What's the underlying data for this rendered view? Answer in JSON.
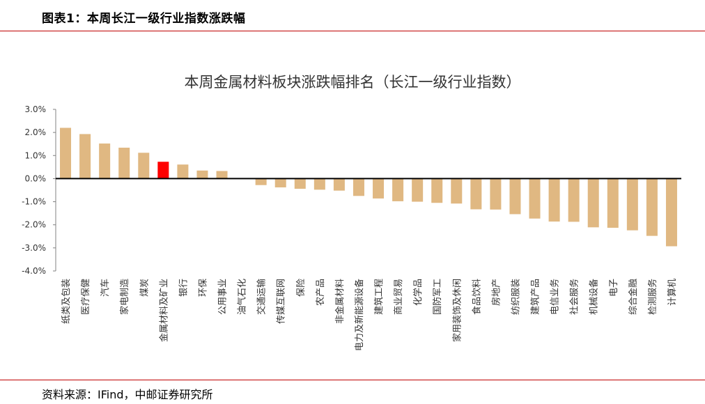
{
  "header": {
    "title": "图表1：本周长江一级行业指数涨跌幅"
  },
  "footer": {
    "source": "资料来源：IFind，中邮证券研究所"
  },
  "chart_data": {
    "type": "bar",
    "title": "本周金属材料板块涨跌幅排名（长江一级行业指数）",
    "xlabel": "",
    "ylabel": "",
    "ylim": [
      -4.0,
      3.0
    ],
    "yticks": [
      "3.0%",
      "2.0%",
      "1.0%",
      "0.0%",
      "-1.0%",
      "-2.0%",
      "-3.0%",
      "-4.0%"
    ],
    "grid": false,
    "legend": "none",
    "bar_color": "#e0b882",
    "highlight_color": "#ff0000",
    "highlight_category": "金属材料及矿业",
    "categories": [
      "纸类及包装",
      "医疗保健",
      "汽车",
      "家电制造",
      "煤炭",
      "金属材料及矿业",
      "银行",
      "环保",
      "公用事业",
      "油气石化",
      "交通运输",
      "传媒互联网",
      "保险",
      "农产品",
      "非金属材料",
      "电力及新能源设备",
      "建筑工程",
      "商业贸易",
      "化学品",
      "国防军工",
      "家用装饰及休闲",
      "食品饮料",
      "房地产",
      "纺织服装",
      "建筑产品",
      "电信业务",
      "社会服务",
      "机械设备",
      "电子",
      "综合金融",
      "检测服务",
      "计算机"
    ],
    "values": [
      2.2,
      1.93,
      1.52,
      1.34,
      1.12,
      0.73,
      0.61,
      0.35,
      0.33,
      0.0,
      -0.28,
      -0.38,
      -0.44,
      -0.48,
      -0.52,
      -0.75,
      -0.86,
      -0.98,
      -1.0,
      -1.05,
      -1.08,
      -1.33,
      -1.34,
      -1.54,
      -1.73,
      -1.86,
      -1.87,
      -2.11,
      -2.13,
      -2.24,
      -2.48,
      -2.93
    ]
  }
}
